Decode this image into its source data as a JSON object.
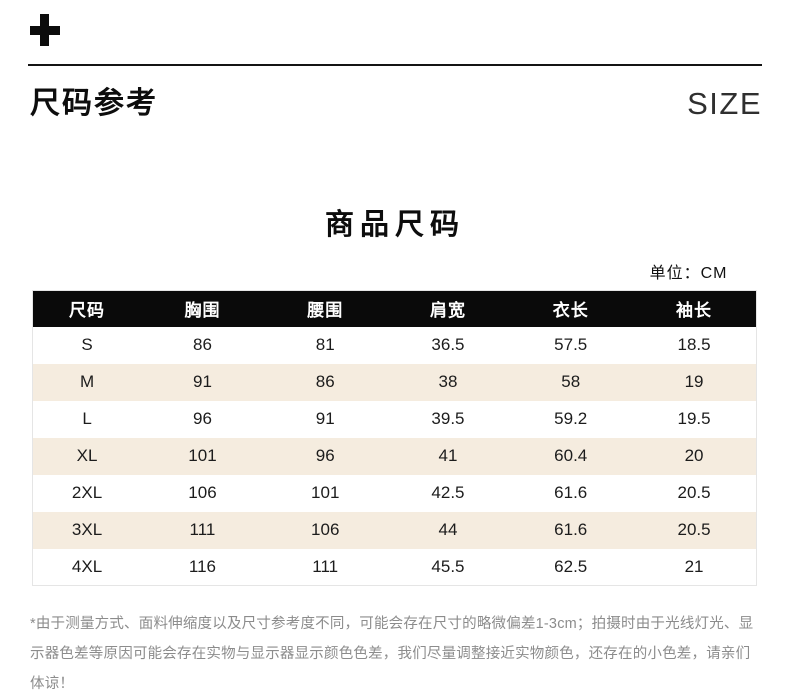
{
  "header": {
    "icon": "plus-icon",
    "title": "尺码参考",
    "subtitle": "SIZE"
  },
  "section": {
    "title": "商品尺码",
    "unit_label": "单位：CM"
  },
  "size_table": {
    "columns": [
      "尺码",
      "胸围",
      "腰围",
      "肩宽",
      "衣长",
      "袖长"
    ],
    "rows": [
      [
        "S",
        "86",
        "81",
        "36.5",
        "57.5",
        "18.5"
      ],
      [
        "M",
        "91",
        "86",
        "38",
        "58",
        "19"
      ],
      [
        "L",
        "96",
        "91",
        "39.5",
        "59.2",
        "19.5"
      ],
      [
        "XL",
        "101",
        "96",
        "41",
        "60.4",
        "20"
      ],
      [
        "2XL",
        "106",
        "101",
        "42.5",
        "61.6",
        "20.5"
      ],
      [
        "3XL",
        "111",
        "106",
        "44",
        "61.6",
        "20.5"
      ],
      [
        "4XL",
        "116",
        "111",
        "45.5",
        "62.5",
        "21"
      ]
    ]
  },
  "footer": {
    "note": "*由于测量方式、面料伸缩度以及尺寸参考度不同，可能会存在尺寸的略微偏差1-3cm；拍摄时由于光线灯光、显示器色差等原因可能会存在实物与显示器显示颜色色差，我们尽量调整接近实物颜色，还存在的小色差，请亲们体谅！"
  },
  "colors": {
    "table_header_bg": "#0a0a0a",
    "row_stripe": "#f5ecdf",
    "table_border": "#e5e5e5",
    "note_text": "#8c8c8c"
  }
}
